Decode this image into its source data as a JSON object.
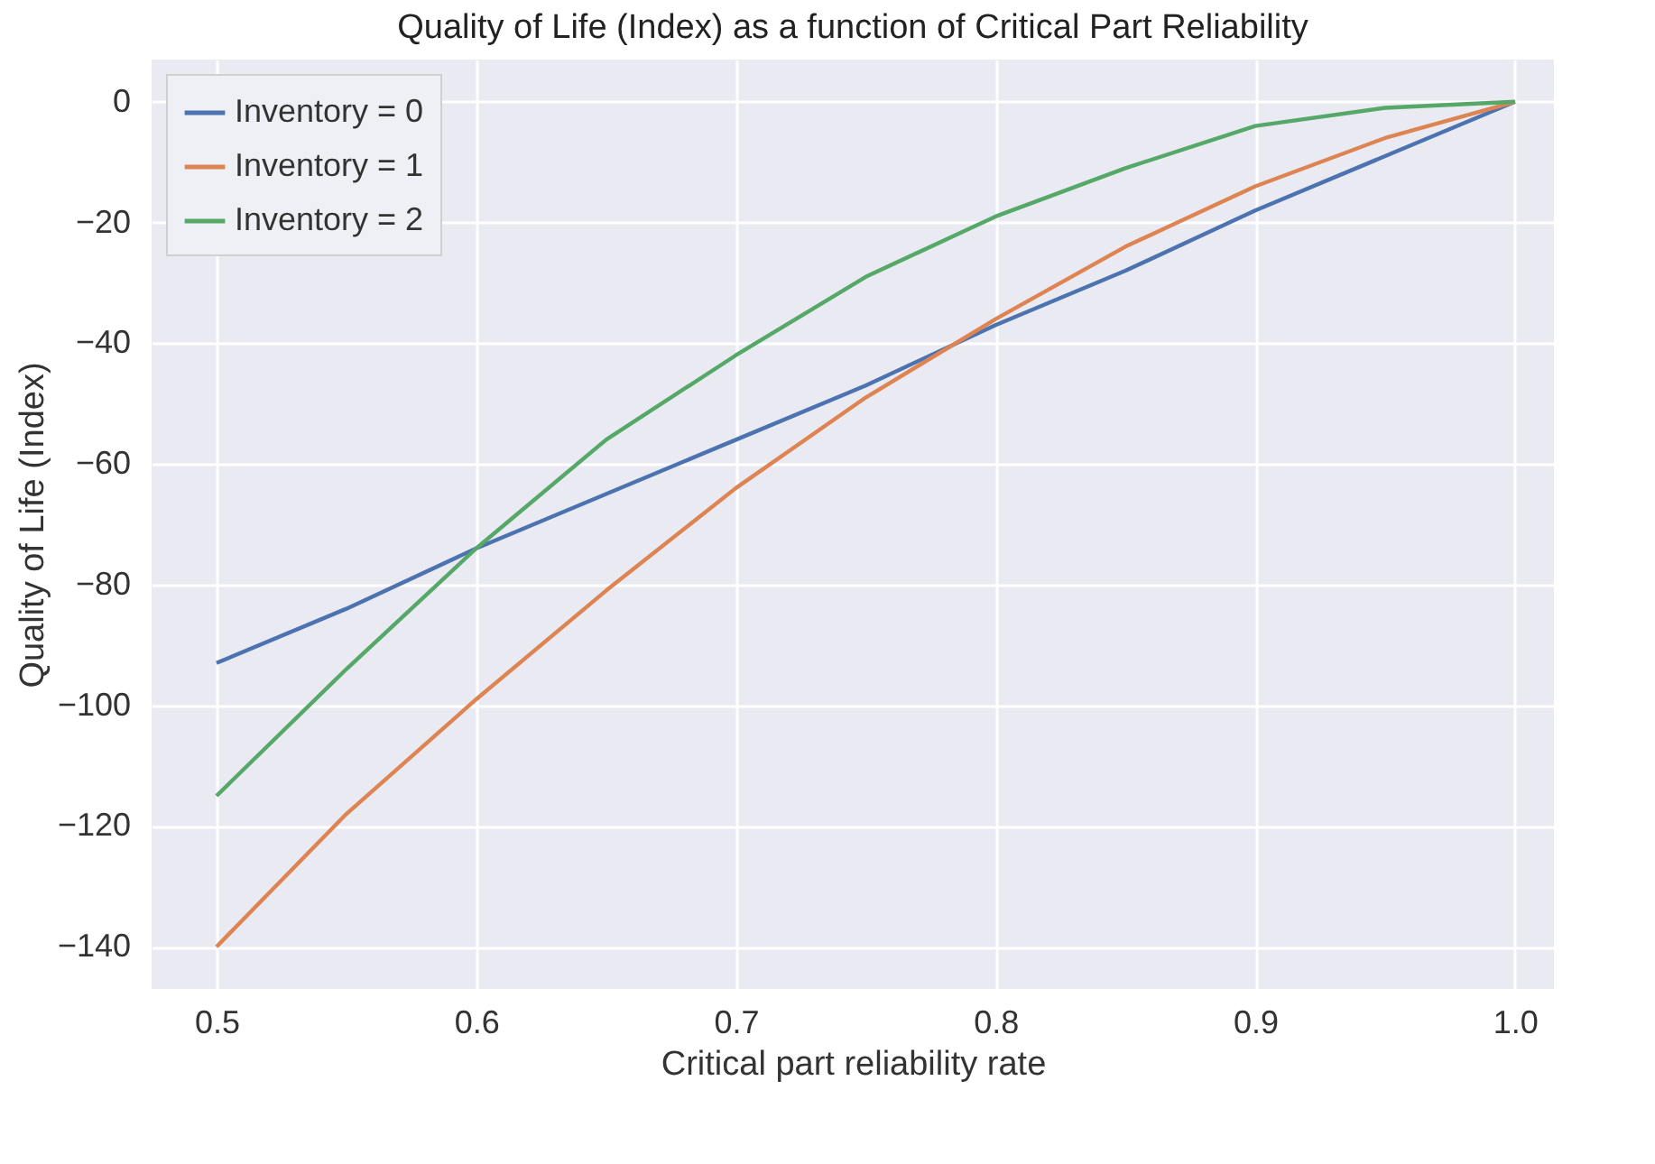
{
  "chart_data": {
    "type": "line",
    "title": "Quality of Life (Index) as a function of Critical Part Reliability",
    "xlabel": "Critical part reliability rate",
    "ylabel": "Quality of Life (Index)",
    "x": [
      0.5,
      0.55,
      0.6,
      0.65,
      0.7,
      0.75,
      0.8,
      0.85,
      0.9,
      0.95,
      1.0
    ],
    "series": [
      {
        "name": "Inventory = 0",
        "color": "#4c72b0",
        "values": [
          -93,
          -84,
          -74,
          -65,
          -56,
          -47,
          -37,
          -28,
          -18,
          -9,
          0
        ]
      },
      {
        "name": "Inventory = 1",
        "color": "#dd8452",
        "values": [
          -140,
          -118,
          -99,
          -81,
          -64,
          -49,
          -36,
          -24,
          -14,
          -6,
          0
        ]
      },
      {
        "name": "Inventory = 2",
        "color": "#55a868",
        "values": [
          -115,
          -94,
          -74,
          -56,
          -42,
          -29,
          -19,
          -11,
          -4,
          -1,
          0
        ]
      }
    ],
    "xlim": [
      0.475,
      1.015
    ],
    "ylim": [
      -147,
      7
    ],
    "xticks": [
      0.5,
      0.6,
      0.7,
      0.8,
      0.9,
      {
        "value": 1.0,
        "label": "1.0"
      }
    ],
    "yticks": [
      {
        "value": -140,
        "label": "−140"
      },
      {
        "value": -120,
        "label": "−120"
      },
      {
        "value": -100,
        "label": "−100"
      },
      {
        "value": -80,
        "label": "−80"
      },
      {
        "value": -60,
        "label": "−60"
      },
      {
        "value": -40,
        "label": "−40"
      },
      {
        "value": -20,
        "label": "−20"
      },
      0
    ],
    "grid": true,
    "legend": "top left",
    "line_style": "solid"
  }
}
